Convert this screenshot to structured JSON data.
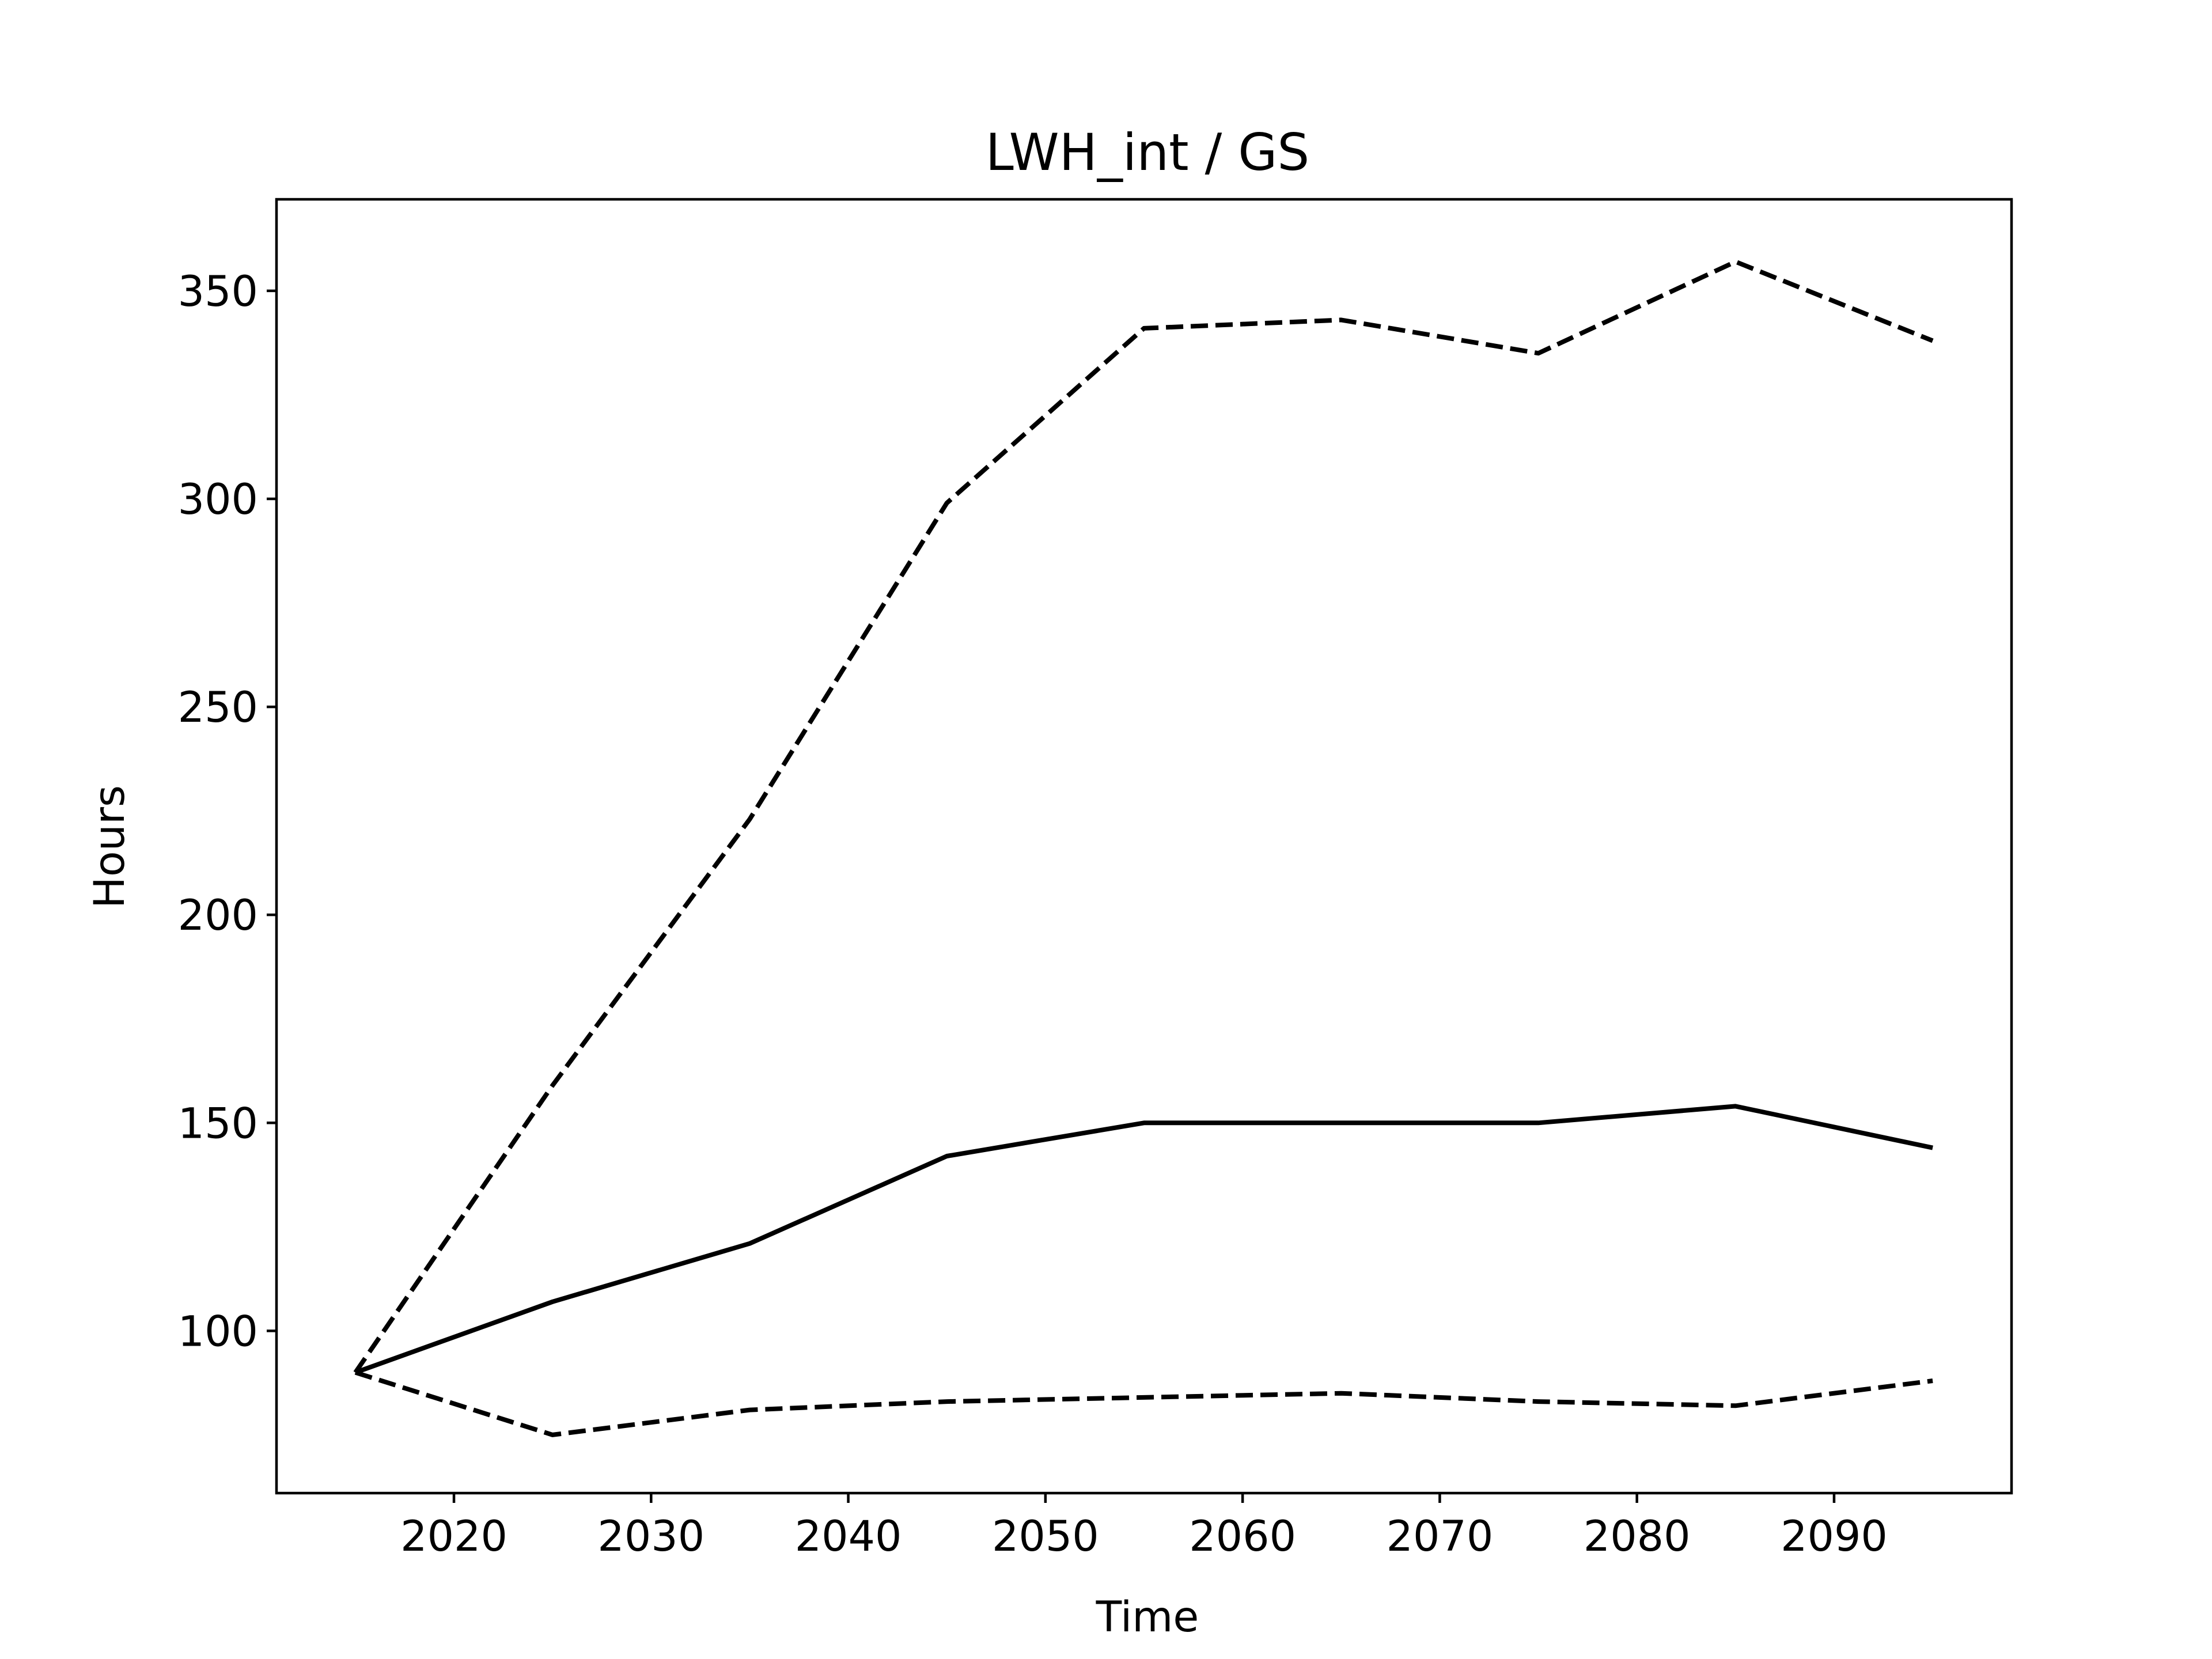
{
  "chart_data": {
    "type": "line",
    "title": "LWH_int / GS",
    "xlabel": "Time",
    "ylabel": "Hours",
    "x": [
      2015,
      2025,
      2035,
      2045,
      2055,
      2065,
      2075,
      2085,
      2095
    ],
    "xlim": [
      2011,
      2099
    ],
    "ylim": [
      61,
      372
    ],
    "xticks": [
      2020,
      2030,
      2040,
      2050,
      2060,
      2070,
      2080,
      2090
    ],
    "yticks": [
      100,
      150,
      200,
      250,
      300,
      350
    ],
    "grid": false,
    "series": [
      {
        "values": [
          90,
          107,
          121,
          142,
          150,
          150,
          150,
          154,
          144
        ],
        "color": "#000000",
        "linestyle": "solid"
      },
      {
        "values": [
          90,
          159,
          223,
          299,
          341,
          343,
          335,
          357,
          338
        ],
        "color": "#000000",
        "linestyle": "dashed"
      },
      {
        "values": [
          90,
          75,
          81,
          83,
          84,
          85,
          83,
          82,
          88
        ],
        "color": "#000000",
        "linestyle": "dashed"
      }
    ]
  }
}
